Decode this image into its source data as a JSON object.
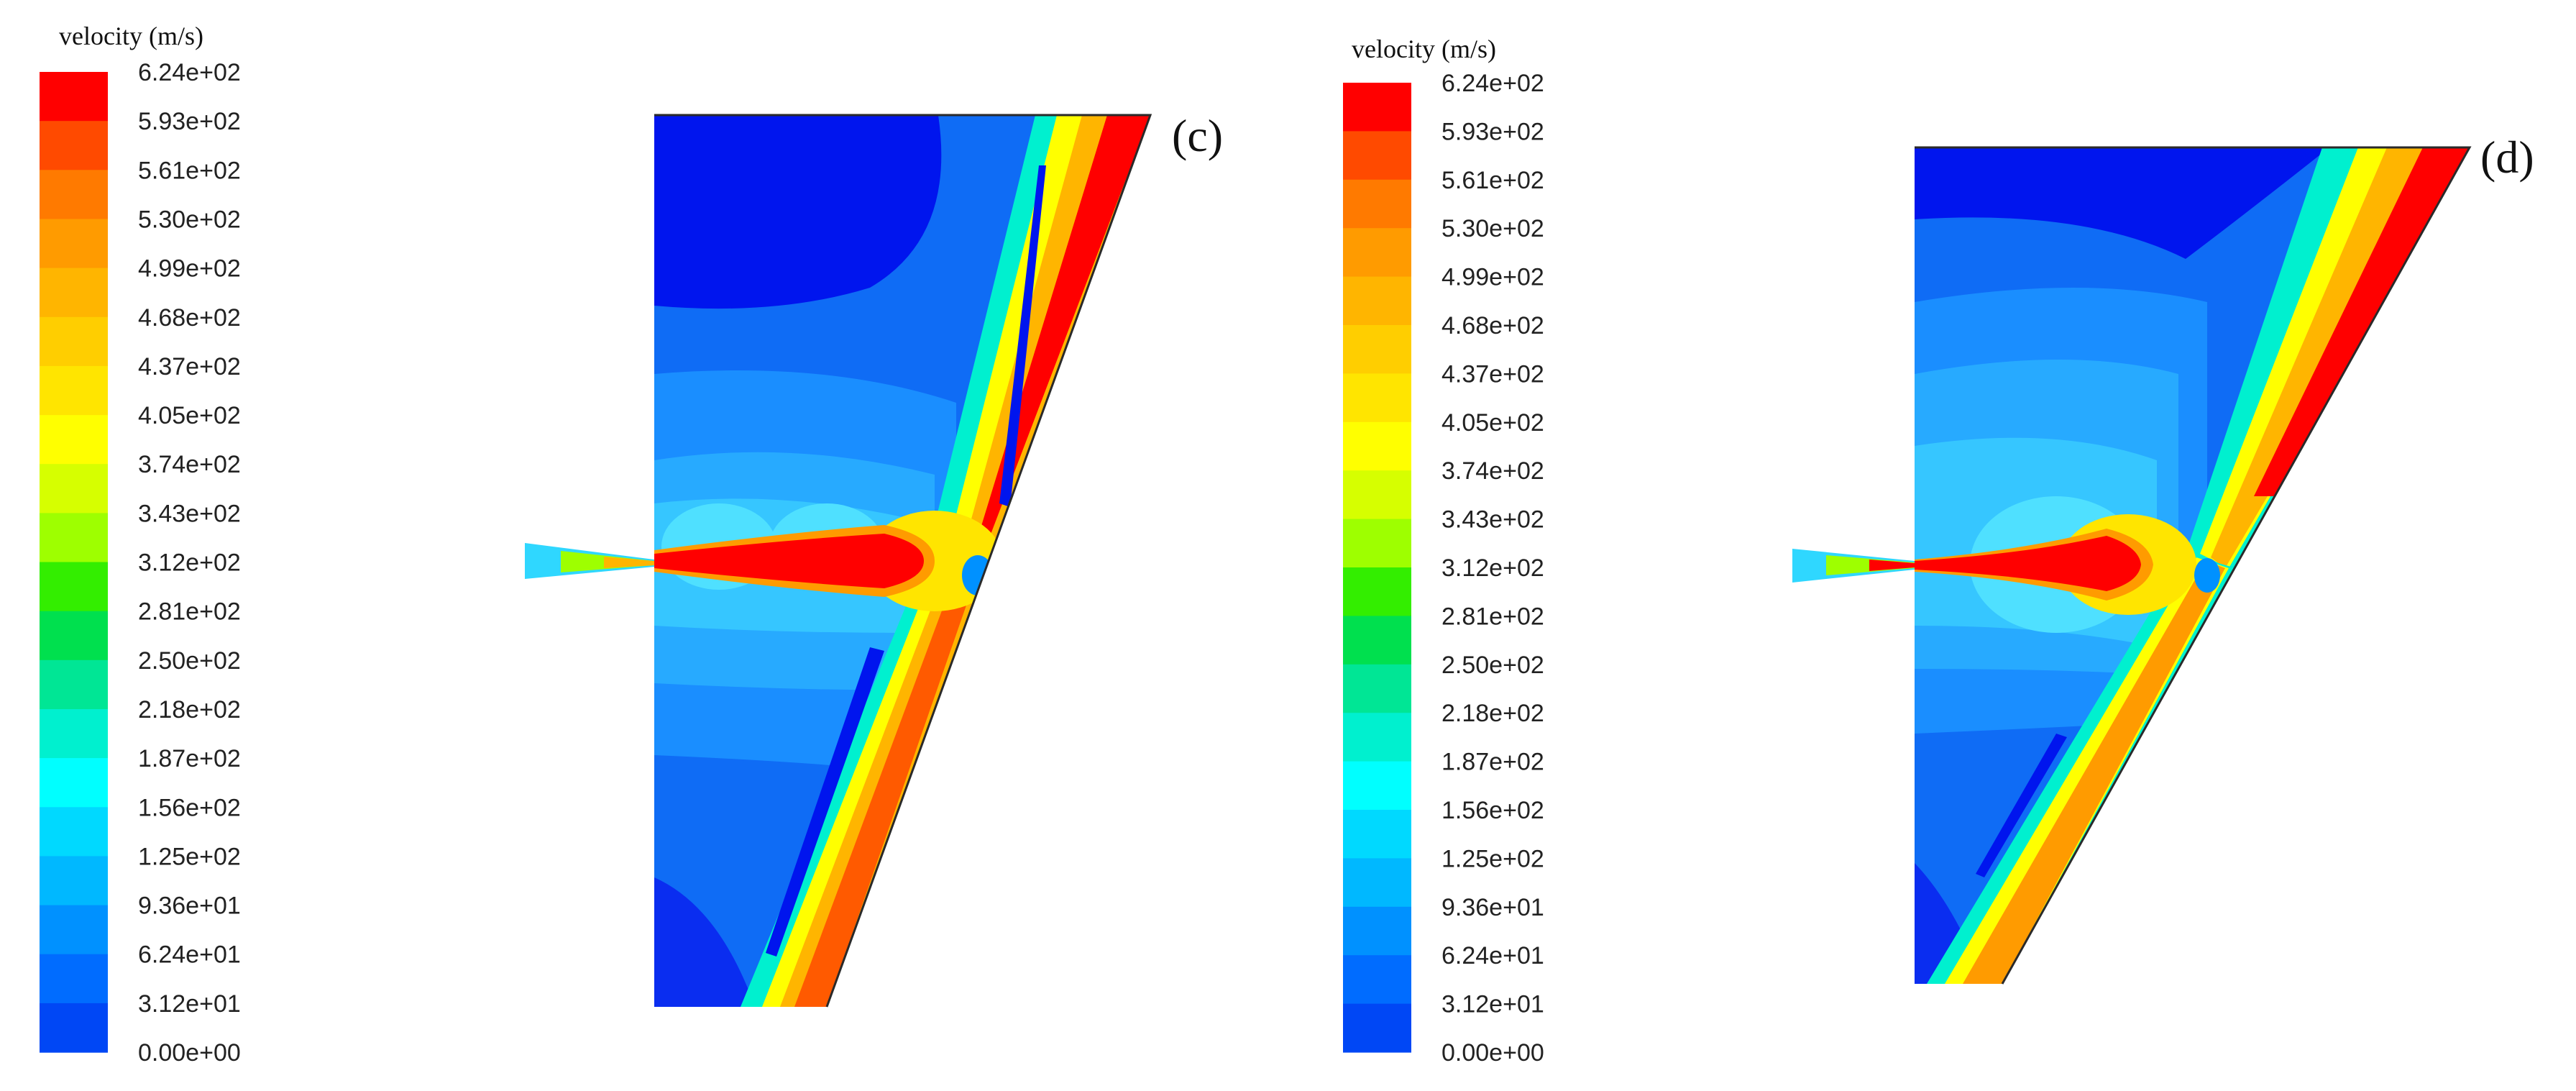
{
  "figure": {
    "legend_title": "velocity (m/s)",
    "legend_levels": [
      "6.24e+02",
      "5.93e+02",
      "5.61e+02",
      "5.30e+02",
      "4.99e+02",
      "4.68e+02",
      "4.37e+02",
      "4.05e+02",
      "3.74e+02",
      "3.43e+02",
      "3.12e+02",
      "2.81e+02",
      "2.50e+02",
      "2.18e+02",
      "1.87e+02",
      "1.56e+02",
      "1.25e+02",
      "9.36e+01",
      "6.24e+01",
      "3.12e+01",
      "0.00e+00"
    ],
    "legend_colors": [
      "#ff0000",
      "#ff4a00",
      "#ff7a00",
      "#ff9b00",
      "#ffb500",
      "#ffce00",
      "#ffe500",
      "#ffff00",
      "#d6ff00",
      "#9eff00",
      "#33ee00",
      "#00e04e",
      "#00e695",
      "#00f0cf",
      "#00ffff",
      "#00d9ff",
      "#00b8ff",
      "#0091ff",
      "#006cff",
      "#0047f5",
      "#0000f0"
    ],
    "panels": [
      {
        "label": "(c)"
      },
      {
        "label": "(d)"
      }
    ]
  }
}
